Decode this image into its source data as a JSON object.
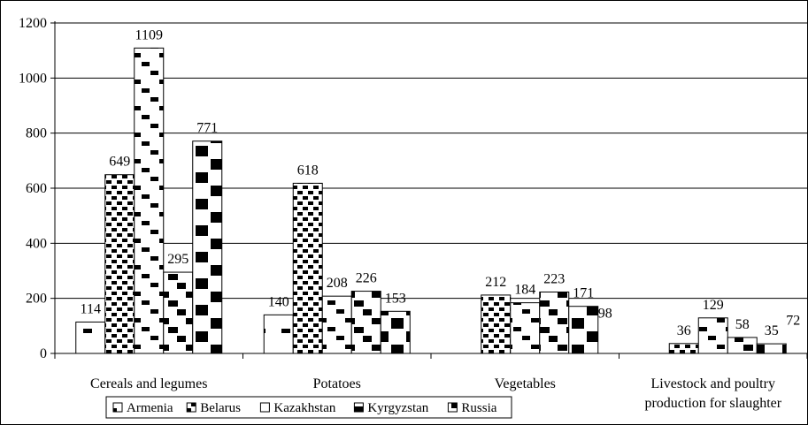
{
  "chart_data": {
    "type": "bar",
    "categories": [
      [
        "Cereals and legumes"
      ],
      [
        "Potatoes"
      ],
      [
        "Vegetables"
      ],
      [
        "Livestock and poultry",
        "production for slaughter"
      ]
    ],
    "series": [
      {
        "name": "Armenia",
        "values": [
          114,
          140,
          0,
          0
        ],
        "pattern": "sparse"
      },
      {
        "name": "Belarus",
        "values": [
          649,
          618,
          212,
          36
        ],
        "pattern": "checker"
      },
      {
        "name": "Kazakhstan",
        "values": [
          1109,
          208,
          184,
          129
        ],
        "pattern": "diagonal-dense"
      },
      {
        "name": "Kyrgyzstan",
        "values": [
          295,
          226,
          223,
          58
        ],
        "pattern": "diagonal-heavy"
      },
      {
        "name": "Russia",
        "values": [
          771,
          153,
          171,
          35
        ],
        "pattern": "block"
      }
    ],
    "extra_labels": [
      {
        "category": 2,
        "value": 98
      },
      {
        "category": 3,
        "value": 72
      }
    ],
    "yticks": [
      "0",
      "200",
      "400",
      "600",
      "800",
      "1000",
      "1200"
    ],
    "ylim": [
      0,
      1200
    ],
    "legend_position": "bottom",
    "grid": true,
    "colors": {
      "bar_fill": "#ffffff",
      "pattern_ink": "#000000",
      "axis": "#000000"
    }
  }
}
